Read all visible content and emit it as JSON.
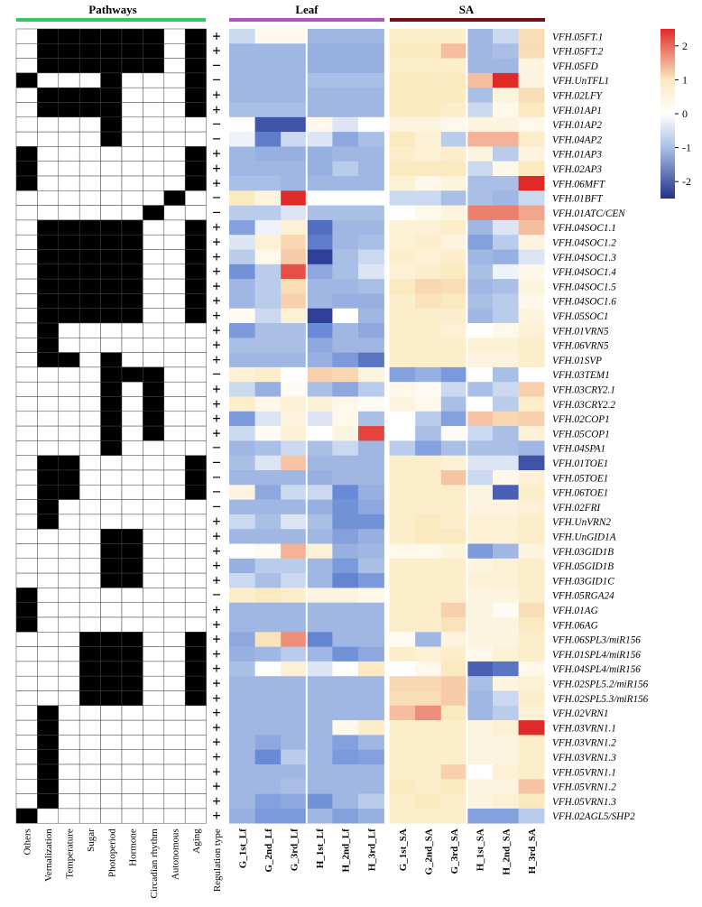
{
  "chart_data": {
    "type": "heatmap",
    "colors": {
      "high": "#e02a2a",
      "mid": "#ffffff",
      "low": "#24308a",
      "warm": "#fbe9c0",
      "pathway_on": "#000000",
      "pathway_off": "#ffffff",
      "pathways_bar": "#2ecc5e",
      "leaf_bar": "#b34fc4",
      "sa_bar": "#7a0b15"
    },
    "group_headers": {
      "pathways": "Pathways",
      "leaf": "Leaf",
      "sa": "SA"
    },
    "pathway_columns": [
      "Others",
      "Vernalization",
      "Temperature",
      "Sugar",
      "Photoperiod",
      "Hormone",
      "Circadian rhythm",
      "Autonomous",
      "Aging"
    ],
    "regulation_label": "Regulation type",
    "columns": [
      "G_1st_Lf",
      "G_2nd_Lf",
      "G_3rd_Lf",
      "H_1st_Lf",
      "H_2nd_Lf",
      "H_3rd_Lf",
      "G_1st_SA",
      "G_2nd_SA",
      "G_3rd_SA",
      "H_1st_SA",
      "H_2nd_SA",
      "H_3rd_SA"
    ],
    "colorbar": {
      "range": [
        -2.5,
        2.5
      ],
      "ticks": [
        2,
        1,
        0,
        -1,
        -2
      ],
      "tick_labels": [
        "2",
        "1",
        "0",
        "-1",
        "-2"
      ]
    },
    "genes": [
      "VFH.05FT.1",
      "VFH.05FT.2",
      "VFH.05FD",
      "VFH.UnTFL1",
      "VFH.02LFY",
      "VFH.01AP1",
      "VFH.01AP2",
      "VFH.04AP2",
      "VFH.01AP3",
      "VFH.02AP3",
      "VFH.06MFT",
      "VFH.01BFT",
      "VFH.01ATC/CEN",
      "VFH.04SOC1.1",
      "VFH.04SOC1.2",
      "VFH.04SOC1.3",
      "VFH.04SOC1.4",
      "VFH.04SOC1.5",
      "VFH.04SOC1.6",
      "VFH.05SOC1",
      "VFH.01VRN5",
      "VFH.06VRN5",
      "VFH.01SVP",
      "VFH.03TEM1",
      "VFH.03CRY2.1",
      "VFH.03CRY2.2",
      "VFH.02COP1",
      "VFH.05COP1",
      "VFH.04SPA1",
      "VFH.01TOE1",
      "VFH.05TOE1",
      "VFH.06TOE1",
      "VFH.02FRI",
      "VFH.UnVRN2",
      "VFH.UnGID1A",
      "VFH.03GID1B",
      "VFH.05GID1B",
      "VFH.03GID1C",
      "VFH.05RGA24",
      "VFH.01AG",
      "VFH.06AG",
      "VFH.06SPL3/miR156",
      "VFH.01SPL4/miR156",
      "VFH.04SPL4/miR156",
      "VFH.02SPL5.2/miR156",
      "VFH.02SPL5.3/miR156",
      "VFH.02VRN1",
      "VFH.03VRN1.1",
      "VFH.03VRN1.2",
      "VFH.03VRN1.3",
      "VFH.05VRN1.1",
      "VFH.05VRN1.2",
      "VFH.05VRN1.3",
      "VFH.02AGL5/SHP2"
    ],
    "regulation": [
      "+",
      "+",
      "−",
      "−",
      "+",
      "+",
      "−",
      "−",
      "+",
      "+",
      "+",
      "−",
      "−",
      "+",
      "+",
      "+",
      "+",
      "+",
      "+",
      "+",
      "+",
      "+",
      "+",
      "−",
      "+",
      "+",
      "+",
      "+",
      "−",
      "−",
      "−",
      "−",
      "−",
      "+",
      "+",
      "+",
      "+",
      "+",
      "−",
      "+",
      "+",
      "+",
      "+",
      "+",
      "+",
      "+",
      "+",
      "+",
      "+",
      "+",
      "+",
      "+",
      "+",
      "+"
    ],
    "pathways": [
      [
        0,
        1,
        1,
        1,
        1,
        1,
        1,
        0,
        1
      ],
      [
        0,
        1,
        1,
        1,
        1,
        1,
        1,
        0,
        1
      ],
      [
        0,
        1,
        1,
        1,
        1,
        1,
        1,
        0,
        1
      ],
      [
        1,
        0,
        0,
        0,
        1,
        0,
        0,
        0,
        1
      ],
      [
        0,
        1,
        1,
        1,
        1,
        0,
        0,
        0,
        1
      ],
      [
        0,
        1,
        1,
        1,
        1,
        0,
        0,
        0,
        1
      ],
      [
        0,
        0,
        0,
        0,
        1,
        0,
        0,
        0,
        0
      ],
      [
        0,
        0,
        0,
        0,
        1,
        0,
        0,
        0,
        0
      ],
      [
        1,
        0,
        0,
        0,
        0,
        0,
        0,
        0,
        1
      ],
      [
        1,
        0,
        0,
        0,
        0,
        0,
        0,
        0,
        1
      ],
      [
        1,
        0,
        0,
        0,
        0,
        0,
        0,
        0,
        1
      ],
      [
        0,
        0,
        0,
        0,
        0,
        0,
        0,
        1,
        0
      ],
      [
        0,
        0,
        0,
        0,
        0,
        0,
        1,
        0,
        0
      ],
      [
        0,
        1,
        1,
        1,
        1,
        1,
        0,
        0,
        1
      ],
      [
        0,
        1,
        1,
        1,
        1,
        1,
        0,
        0,
        1
      ],
      [
        0,
        1,
        1,
        1,
        1,
        1,
        0,
        0,
        1
      ],
      [
        0,
        1,
        1,
        1,
        1,
        1,
        0,
        0,
        1
      ],
      [
        0,
        1,
        1,
        1,
        1,
        1,
        0,
        0,
        1
      ],
      [
        0,
        1,
        1,
        1,
        1,
        1,
        0,
        0,
        1
      ],
      [
        0,
        1,
        1,
        1,
        1,
        1,
        0,
        0,
        1
      ],
      [
        0,
        1,
        0,
        0,
        0,
        0,
        0,
        0,
        0
      ],
      [
        0,
        1,
        0,
        0,
        0,
        0,
        0,
        0,
        0
      ],
      [
        0,
        1,
        1,
        0,
        1,
        0,
        0,
        0,
        0
      ],
      [
        0,
        0,
        0,
        0,
        1,
        1,
        1,
        0,
        0
      ],
      [
        0,
        0,
        0,
        0,
        1,
        0,
        1,
        0,
        0
      ],
      [
        0,
        0,
        0,
        0,
        1,
        0,
        1,
        0,
        0
      ],
      [
        0,
        0,
        0,
        0,
        1,
        0,
        1,
        0,
        0
      ],
      [
        0,
        0,
        0,
        0,
        1,
        0,
        1,
        0,
        0
      ],
      [
        0,
        0,
        0,
        0,
        1,
        0,
        0,
        0,
        0
      ],
      [
        0,
        1,
        1,
        0,
        0,
        0,
        0,
        0,
        1
      ],
      [
        0,
        1,
        1,
        0,
        0,
        0,
        0,
        0,
        1
      ],
      [
        0,
        1,
        1,
        0,
        0,
        0,
        0,
        0,
        1
      ],
      [
        0,
        1,
        0,
        0,
        0,
        0,
        0,
        0,
        0
      ],
      [
        0,
        1,
        0,
        0,
        0,
        0,
        0,
        0,
        0
      ],
      [
        0,
        0,
        0,
        0,
        1,
        1,
        0,
        0,
        0
      ],
      [
        0,
        0,
        0,
        0,
        1,
        1,
        0,
        0,
        0
      ],
      [
        0,
        0,
        0,
        0,
        1,
        1,
        0,
        0,
        0
      ],
      [
        0,
        0,
        0,
        0,
        1,
        1,
        0,
        0,
        0
      ],
      [
        1,
        0,
        0,
        0,
        0,
        0,
        0,
        0,
        0
      ],
      [
        1,
        0,
        0,
        0,
        0,
        0,
        0,
        0,
        0
      ],
      [
        1,
        0,
        0,
        0,
        0,
        0,
        0,
        0,
        0
      ],
      [
        0,
        0,
        0,
        1,
        1,
        1,
        0,
        0,
        1
      ],
      [
        0,
        0,
        0,
        1,
        1,
        1,
        0,
        0,
        1
      ],
      [
        0,
        0,
        0,
        1,
        1,
        1,
        0,
        0,
        1
      ],
      [
        0,
        0,
        0,
        1,
        1,
        1,
        0,
        0,
        1
      ],
      [
        0,
        0,
        0,
        1,
        1,
        1,
        0,
        0,
        1
      ],
      [
        0,
        1,
        0,
        0,
        0,
        0,
        0,
        0,
        0
      ],
      [
        0,
        1,
        0,
        0,
        0,
        0,
        0,
        0,
        0
      ],
      [
        0,
        1,
        0,
        0,
        0,
        0,
        0,
        0,
        0
      ],
      [
        0,
        1,
        0,
        0,
        0,
        0,
        0,
        0,
        0
      ],
      [
        0,
        1,
        0,
        0,
        0,
        0,
        0,
        0,
        0
      ],
      [
        0,
        1,
        0,
        0,
        0,
        0,
        0,
        0,
        0
      ],
      [
        0,
        1,
        0,
        0,
        0,
        0,
        0,
        0,
        0
      ],
      [
        1,
        0,
        0,
        0,
        0,
        0,
        0,
        0,
        0
      ]
    ],
    "values": [
      [
        -0.3,
        0.2,
        0.2,
        -0.6,
        -0.6,
        -0.6,
        0.5,
        0.5,
        0.5,
        -0.6,
        -0.3,
        0.8
      ],
      [
        -0.6,
        -0.6,
        -0.6,
        -0.7,
        -0.7,
        -0.7,
        0.6,
        0.6,
        1.3,
        -0.6,
        -0.5,
        0.8
      ],
      [
        -0.6,
        -0.6,
        -0.6,
        -0.7,
        -0.7,
        -0.7,
        0.5,
        0.5,
        0.5,
        -0.6,
        -0.6,
        0.3
      ],
      [
        -0.6,
        -0.6,
        -0.6,
        -0.5,
        -0.5,
        -0.5,
        0.6,
        0.6,
        0.6,
        1.3,
        2.6,
        0.3
      ],
      [
        -0.6,
        -0.6,
        -0.6,
        -0.6,
        -0.6,
        -0.6,
        0.6,
        0.6,
        0.6,
        -0.5,
        0.3,
        0.8
      ],
      [
        -0.5,
        -0.5,
        -0.5,
        -0.6,
        -0.6,
        -0.6,
        0.6,
        0.6,
        0.5,
        -0.3,
        0.2,
        0.6
      ],
      [
        0.0,
        -2.0,
        -2.0,
        0.2,
        -0.2,
        0.0,
        0.3,
        0.3,
        0.2,
        0.3,
        0.3,
        0.2
      ],
      [
        -0.1,
        -1.4,
        -0.3,
        -0.2,
        -0.8,
        -0.5,
        0.6,
        0.4,
        -0.4,
        1.4,
        1.4,
        0.5
      ],
      [
        -0.6,
        -0.7,
        -0.7,
        -0.7,
        -0.6,
        -0.6,
        0.5,
        0.4,
        0.5,
        0.3,
        -0.4,
        0.3
      ],
      [
        -0.6,
        -0.6,
        -0.6,
        -0.7,
        -0.4,
        -0.6,
        0.6,
        0.6,
        0.6,
        -0.3,
        0.2,
        0.6
      ],
      [
        -0.5,
        -0.5,
        -0.6,
        -0.6,
        -0.6,
        -0.6,
        0.4,
        0.2,
        0.3,
        -0.5,
        -0.5,
        2.5
      ],
      [
        0.6,
        0.3,
        2.5,
        0.0,
        0.0,
        0.0,
        -0.3,
        -0.3,
        -0.5,
        -0.5,
        -0.6,
        -0.3
      ],
      [
        -0.4,
        -0.4,
        -0.2,
        -0.5,
        -0.5,
        -0.5,
        0.0,
        0.2,
        0.3,
        1.8,
        1.8,
        1.5
      ],
      [
        -0.9,
        -0.1,
        0.4,
        -1.6,
        -0.6,
        -0.6,
        0.4,
        0.4,
        0.5,
        -0.6,
        -0.2,
        1.3
      ],
      [
        -0.2,
        0.4,
        0.9,
        -1.4,
        -0.6,
        -0.5,
        0.4,
        0.5,
        0.3,
        -0.9,
        -0.4,
        0.3
      ],
      [
        -0.4,
        0.2,
        1.1,
        -2.3,
        -0.5,
        -0.3,
        0.5,
        0.4,
        0.5,
        -0.6,
        -0.7,
        -0.2
      ],
      [
        -1.1,
        -0.4,
        2.2,
        -0.8,
        -0.5,
        -0.2,
        0.4,
        0.5,
        0.6,
        -0.5,
        -0.1,
        0.2
      ],
      [
        -0.6,
        -0.4,
        0.8,
        -0.6,
        -0.6,
        -0.5,
        0.6,
        0.9,
        0.8,
        -0.6,
        -0.5,
        0.3
      ],
      [
        -0.6,
        -0.4,
        1.0,
        -0.6,
        -0.7,
        -0.7,
        0.5,
        0.7,
        0.6,
        -0.5,
        -0.4,
        0.2
      ],
      [
        0.1,
        -0.3,
        0.4,
        -2.3,
        0.0,
        -0.6,
        0.5,
        0.5,
        0.5,
        -0.6,
        -0.4,
        0.3
      ],
      [
        -1.0,
        -0.5,
        -0.5,
        -1.2,
        -0.6,
        -0.8,
        0.5,
        0.5,
        0.4,
        0.0,
        0.2,
        0.4
      ],
      [
        -0.5,
        -0.5,
        -0.5,
        -0.8,
        -0.6,
        -0.6,
        0.5,
        0.5,
        0.5,
        0.4,
        0.4,
        0.5
      ],
      [
        -0.6,
        -0.6,
        -0.6,
        -0.7,
        -1.0,
        -1.5,
        0.5,
        0.5,
        0.5,
        0.3,
        0.3,
        0.5
      ],
      [
        0.4,
        0.5,
        0.0,
        1.0,
        0.9,
        0.3,
        -0.9,
        -0.7,
        -1.0,
        0.0,
        -0.5,
        0.0
      ],
      [
        -0.3,
        -0.7,
        0.1,
        -0.5,
        -0.8,
        -0.4,
        0.2,
        0.1,
        -0.3,
        -0.5,
        -0.3,
        1.0
      ],
      [
        0.5,
        0.2,
        0.4,
        0.4,
        0.2,
        0.1,
        0.3,
        0.2,
        -0.5,
        0.0,
        -0.4,
        0.5
      ],
      [
        -1.0,
        -0.2,
        0.3,
        -0.2,
        0.2,
        -0.5,
        0.0,
        -0.4,
        -0.9,
        1.2,
        0.9,
        1.0
      ],
      [
        -0.3,
        0.1,
        0.4,
        0.0,
        0.3,
        2.3,
        0.0,
        -0.5,
        0.1,
        -0.3,
        -0.5,
        0.4
      ],
      [
        -0.6,
        -0.5,
        -0.3,
        -0.5,
        -0.3,
        -0.6,
        -0.4,
        -0.9,
        -0.5,
        -0.5,
        -0.5,
        -0.6
      ],
      [
        -0.5,
        -0.2,
        1.2,
        -0.6,
        -0.6,
        -0.6,
        0.5,
        0.5,
        0.4,
        -0.2,
        -0.2,
        -2.0
      ],
      [
        -0.6,
        -0.6,
        -0.6,
        -0.7,
        -0.6,
        -0.6,
        0.5,
        0.5,
        1.2,
        -0.3,
        0.2,
        0.4
      ],
      [
        0.3,
        -0.8,
        -0.3,
        -0.3,
        -1.2,
        -0.7,
        0.5,
        0.5,
        0.5,
        0.3,
        -1.8,
        0.5
      ],
      [
        -0.6,
        -0.6,
        -0.6,
        -0.7,
        -1.1,
        -0.8,
        0.5,
        0.5,
        0.5,
        0.3,
        0.3,
        0.4
      ],
      [
        -0.3,
        -0.5,
        -0.2,
        -0.5,
        -1.1,
        -1.1,
        0.5,
        0.6,
        0.5,
        0.4,
        0.4,
        0.5
      ],
      [
        -0.6,
        -0.6,
        -0.6,
        -0.6,
        -0.9,
        -0.7,
        0.5,
        0.6,
        0.6,
        0.4,
        0.4,
        0.5
      ],
      [
        0.0,
        0.1,
        1.4,
        0.4,
        -0.7,
        -0.6,
        0.2,
        0.2,
        0.3,
        -1.0,
        -0.6,
        0.3
      ],
      [
        -0.7,
        -0.4,
        -0.4,
        -0.6,
        -1.0,
        -0.5,
        0.5,
        0.5,
        0.5,
        0.3,
        0.4,
        0.5
      ],
      [
        -0.3,
        -0.5,
        -0.3,
        -0.6,
        -1.3,
        -1.0,
        0.5,
        0.5,
        0.5,
        0.4,
        0.4,
        0.5
      ],
      [
        0.5,
        0.6,
        0.5,
        0.3,
        0.3,
        0.2,
        0.5,
        0.5,
        0.5,
        0.3,
        0.3,
        0.5
      ],
      [
        -0.6,
        -0.6,
        -0.6,
        -0.6,
        -0.6,
        -0.6,
        0.5,
        0.5,
        1.0,
        0.3,
        0.1,
        0.8
      ],
      [
        -0.6,
        -0.6,
        -0.6,
        -0.6,
        -0.6,
        -0.6,
        0.5,
        0.5,
        0.7,
        0.3,
        0.3,
        0.6
      ],
      [
        -0.8,
        0.7,
        1.7,
        -1.3,
        -0.6,
        -0.6,
        0.1,
        -0.6,
        0.3,
        0.3,
        0.3,
        0.5
      ],
      [
        -0.7,
        -0.6,
        -0.4,
        -0.6,
        -1.1,
        -0.8,
        0.5,
        0.4,
        0.5,
        0.2,
        0.4,
        0.5
      ],
      [
        -0.5,
        0.0,
        0.4,
        -0.2,
        0.0,
        0.6,
        0.0,
        0.2,
        0.6,
        -1.8,
        -1.5,
        0.2
      ],
      [
        -0.6,
        -0.6,
        -0.6,
        -0.6,
        -0.6,
        -0.6,
        0.9,
        0.9,
        1.1,
        -0.5,
        0.3,
        0.4
      ],
      [
        -0.6,
        -0.6,
        -0.6,
        -0.6,
        -0.6,
        -0.6,
        0.8,
        0.8,
        1.1,
        -0.6,
        -0.3,
        0.5
      ],
      [
        -0.6,
        -0.6,
        -0.6,
        -0.6,
        -0.6,
        -0.6,
        1.3,
        1.7,
        0.6,
        -0.6,
        -0.4,
        0.4
      ],
      [
        -0.6,
        -0.6,
        -0.6,
        -0.6,
        0.2,
        0.5,
        0.5,
        0.5,
        0.5,
        0.3,
        0.4,
        2.5
      ],
      [
        -0.6,
        -0.8,
        -0.6,
        -0.6,
        -0.9,
        -0.6,
        0.5,
        0.5,
        0.5,
        0.3,
        0.3,
        0.5
      ],
      [
        -0.6,
        -1.2,
        -0.4,
        -0.6,
        -1.0,
        -0.9,
        0.5,
        0.5,
        0.5,
        0.3,
        0.3,
        0.5
      ],
      [
        -0.6,
        -0.6,
        -0.6,
        -0.6,
        -0.6,
        -0.6,
        0.5,
        0.5,
        1.0,
        0.0,
        0.4,
        0.5
      ],
      [
        -0.6,
        -0.6,
        -0.5,
        -0.6,
        -0.6,
        -0.6,
        0.6,
        0.5,
        0.6,
        0.3,
        0.3,
        1.2
      ],
      [
        -0.6,
        -0.9,
        -0.8,
        -1.1,
        -0.6,
        -0.4,
        0.5,
        0.6,
        0.5,
        0.3,
        0.4,
        0.6
      ],
      [
        -0.7,
        -1.0,
        -1.0,
        -0.6,
        -0.9,
        -0.7,
        0.5,
        0.5,
        0.5,
        -0.9,
        -0.9,
        -0.4
      ]
    ]
  }
}
